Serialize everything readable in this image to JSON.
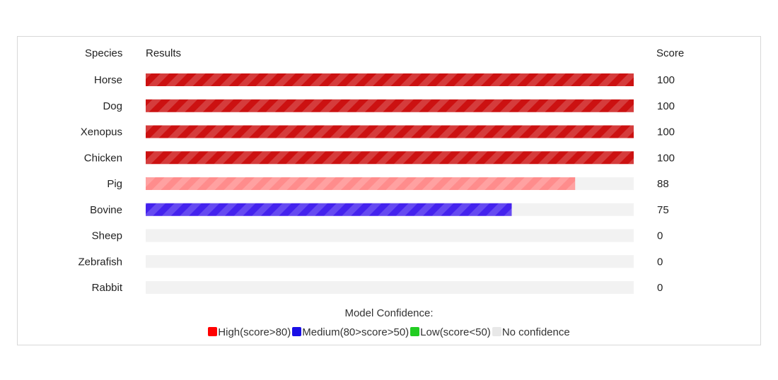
{
  "headers": {
    "species": "Species",
    "results": "Results",
    "score": "Score"
  },
  "chart_data": {
    "type": "bar",
    "orientation": "horizontal",
    "categories": [
      "Horse",
      "Dog",
      "Xenopus",
      "Chicken",
      "Pig",
      "Bovine",
      "Sheep",
      "Zebrafish",
      "Rabbit"
    ],
    "values": [
      100,
      100,
      100,
      100,
      88,
      75,
      0,
      0,
      0
    ],
    "xlim": [
      0,
      100
    ],
    "grid": false
  },
  "legend": {
    "title": "Model Confidence:",
    "items": [
      {
        "label": "High(score>80)",
        "color": "#ff0000"
      },
      {
        "label": "Medium(80>score>50)",
        "color": "#1a0fe6"
      },
      {
        "label": "Low(score<50)",
        "color": "#22cc22"
      },
      {
        "label": "No confidence",
        "color": "#e8e8e8"
      }
    ]
  },
  "colors": {
    "high_full": "#cc1111",
    "high_partial": "#ff8c8c",
    "medium": "#4422ee",
    "track": "#f2f2f2"
  }
}
